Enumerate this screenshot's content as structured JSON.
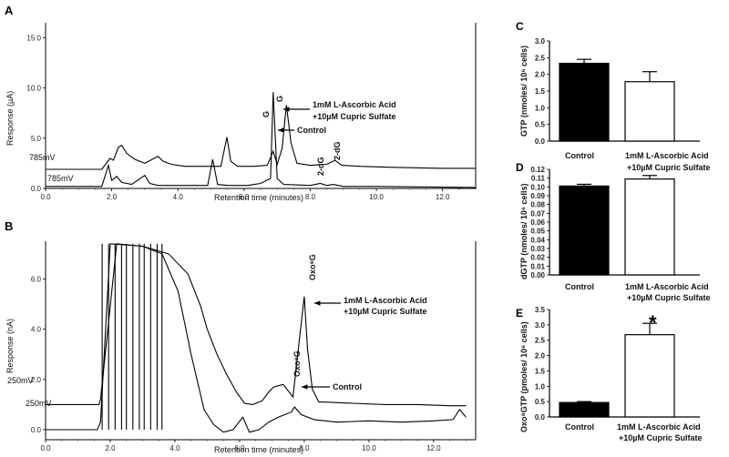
{
  "chart_data": [
    {
      "panel": "A",
      "type": "line",
      "xlabel": "Retention time (minutes)",
      "ylabel": "Response (µA)",
      "xlim": [
        0,
        13.0
      ],
      "ylim": [
        0,
        16.5
      ],
      "xticks": [
        "0.0",
        "2.0",
        "4.0",
        "6.0",
        "8.0",
        "10.0",
        "12.0"
      ],
      "yticks": [
        "0.0",
        "5.0",
        "10.0",
        "15.0"
      ],
      "series": [
        {
          "name": "1mM L-Ascorbic Acid +10µM Cupric Sulfate",
          "offset": 1.9,
          "x": [
            0,
            1.7,
            1.95,
            2.05,
            2.2,
            2.3,
            2.45,
            2.7,
            3.0,
            3.4,
            3.55,
            3.8,
            4.2,
            5.3,
            5.48,
            5.6,
            5.8,
            6.3,
            6.7,
            6.88,
            7.0,
            7.15,
            7.28,
            7.42,
            7.6,
            8.0,
            8.5,
            8.75,
            8.95,
            9.5,
            10.5,
            12.0,
            13.0
          ],
          "y": [
            0,
            0,
            1.1,
            0.9,
            2.2,
            2.4,
            1.6,
            1.0,
            0.6,
            1.3,
            0.8,
            0.5,
            0.3,
            0.3,
            3.2,
            0.8,
            0.3,
            0.3,
            0.4,
            1.8,
            0.5,
            2.1,
            6.4,
            2.6,
            0.6,
            0.4,
            0.5,
            0.9,
            0.4,
            0.3,
            0.2,
            0.1,
            0.1
          ]
        },
        {
          "name": "Control",
          "offset": 0,
          "x": [
            0,
            1.7,
            1.9,
            2.0,
            2.15,
            2.3,
            2.6,
            3.0,
            3.15,
            3.4,
            4.0,
            4.9,
            5.05,
            5.2,
            5.5,
            6.1,
            6.5,
            6.8,
            6.88,
            7.0,
            7.2,
            8.0,
            8.3,
            8.5,
            8.7,
            9.0,
            10.0,
            13.0
          ],
          "y": [
            0.2,
            0.2,
            2.3,
            0.8,
            1.2,
            0.6,
            0.4,
            1.3,
            0.5,
            0.3,
            0.3,
            0.3,
            2.9,
            0.4,
            0.3,
            0.3,
            0.5,
            1.0,
            9.6,
            1.0,
            0.4,
            0.3,
            0.5,
            0.3,
            0.4,
            0.2,
            0.2,
            0.1
          ]
        }
      ],
      "annotations": [
        "785mV",
        "785mV",
        "G",
        "G",
        "2-dG",
        "2-dG",
        "1mM L-Ascorbic Acid",
        "+10µM Cupric Sulfate",
        "Control"
      ]
    },
    {
      "panel": "B",
      "type": "line",
      "xlabel": "Retention time (minutes)",
      "ylabel": "Response (nA)",
      "xlim": [
        0,
        13.3
      ],
      "ylim": [
        -0.4,
        7.5
      ],
      "xticks": [
        "0.0",
        "2.0",
        "4.0",
        "6.0",
        "8.0",
        "10.0",
        "12.0"
      ],
      "yticks": [
        "0.0",
        "2.0",
        "4.0",
        "6.0"
      ],
      "series": [
        {
          "name": "1mM L-Ascorbic Acid +10µM Cupric Sulfate",
          "offset": 0,
          "x": [
            0,
            1.65,
            1.7,
            2.2,
            3.0,
            3.8,
            4.4,
            4.8,
            5.0,
            5.3,
            5.6,
            5.9,
            6.15,
            6.4,
            6.7,
            6.9,
            7.05,
            7.35,
            7.65,
            7.85,
            8.0,
            8.1,
            8.25,
            8.45,
            8.6,
            9.5,
            10.5,
            11.5,
            12.5,
            13.0
          ],
          "y": [
            1.0,
            1.0,
            1.2,
            7.4,
            7.3,
            7.0,
            6.2,
            4.9,
            4.0,
            3.0,
            2.2,
            1.5,
            1.05,
            1.0,
            1.15,
            1.5,
            1.7,
            1.8,
            1.3,
            3.6,
            5.3,
            3.2,
            1.6,
            1.1,
            1.1,
            1.05,
            1.0,
            1.0,
            0.95,
            0.95
          ]
        },
        {
          "name": "Control",
          "offset": 0,
          "x": [
            0,
            1.6,
            1.7,
            2.0,
            3.0,
            3.6,
            4.1,
            4.5,
            4.9,
            5.2,
            5.5,
            5.8,
            6.1,
            6.3,
            6.6,
            6.9,
            7.2,
            7.4,
            7.6,
            7.7,
            7.9,
            8.3,
            9.0,
            10.0,
            11.0,
            12.0,
            12.6,
            12.8,
            13.0
          ],
          "y": [
            0,
            0,
            0.3,
            7.4,
            7.3,
            7.0,
            5.5,
            3.0,
            0.8,
            0.2,
            -0.1,
            0.0,
            0.5,
            -0.1,
            0.0,
            0.3,
            0.5,
            0.6,
            0.7,
            0.9,
            0.6,
            0.4,
            0.3,
            0.35,
            0.3,
            0.35,
            0.4,
            0.8,
            0.5
          ]
        }
      ],
      "annotations": [
        "250mV",
        "250mV",
        "Oxo⁸G",
        "Oxo⁸G",
        "1mM L-Ascorbic Acid",
        "+10µM Cupric Sulfate",
        "Control"
      ]
    },
    {
      "panel": "C",
      "type": "bar",
      "ylabel": "GTP (nmoles/ 10⁶ cells)",
      "ylim": [
        0,
        3.0
      ],
      "yticks": [
        "0.0",
        "0.5",
        "1.0",
        "1.5",
        "2.0",
        "2.5",
        "3.0"
      ],
      "categories": [
        "Control",
        "1mM L-Ascorbic Acid +10µM Cupric Sulfate"
      ],
      "values": [
        2.33,
        1.78
      ],
      "errors": [
        0.12,
        0.3
      ]
    },
    {
      "panel": "D",
      "type": "bar",
      "ylabel": "dGTP (nmoles/ 10⁶ cells)",
      "ylim": [
        0,
        0.12
      ],
      "yticks": [
        "0.00",
        "0.01",
        "0.02",
        "0.03",
        "0.04",
        "0.05",
        "0.06",
        "0.07",
        "0.08",
        "0.09",
        "0.10",
        "0.11",
        "0.12"
      ],
      "categories": [
        "Control",
        "1mM L-Ascorbic Acid +10µM Cupric Sulfate"
      ],
      "values": [
        0.101,
        0.109
      ],
      "errors": [
        0.002,
        0.004
      ]
    },
    {
      "panel": "E",
      "type": "bar",
      "ylabel": "Oxo⁸GTP (pmoles/ 10⁶ cells)",
      "ylim": [
        0,
        3.5
      ],
      "yticks": [
        "0.0",
        "0.5",
        "1.0",
        "1.5",
        "2.0",
        "2.5",
        "3.0",
        "3.5"
      ],
      "categories": [
        "Control",
        "1mM L-Ascorbic Acid +10µM Cupric Sulfate"
      ],
      "values": [
        0.47,
        2.68
      ],
      "errors": [
        0.03,
        0.37
      ],
      "significance": [
        "",
        "*"
      ]
    }
  ],
  "labels": {
    "a": "A",
    "b": "B",
    "c": "C",
    "d": "D",
    "e": "E",
    "treat1": "1mM L-Ascorbic Acid",
    "treat2": "+10µM Cupric Sulfate",
    "control": "Control",
    "mv785": "785mV",
    "mv250": "250mV",
    "g": "G",
    "dg": "2-dG",
    "oxo": "Oxo⁸G",
    "star": "*"
  }
}
